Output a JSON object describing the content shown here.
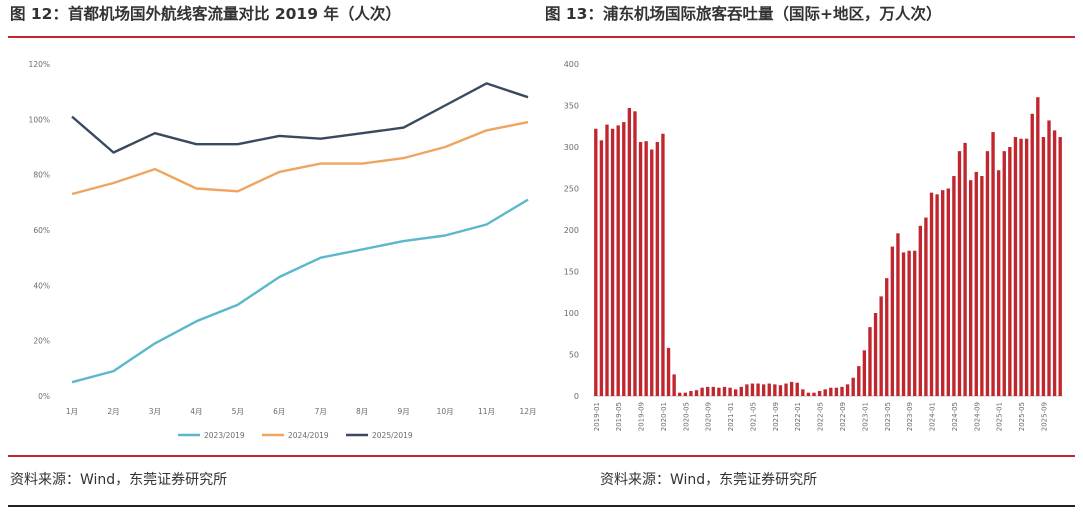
{
  "figure_left": {
    "title": "图 12：首都机场国外航线客流量对比 2019 年（人次）",
    "source": "资料来源：Wind，东莞证券研究所"
  },
  "figure_right": {
    "title": "图 13：浦东机场国际旅客吞吐量（国际+地区，万人次）",
    "source": "资料来源：Wind，东莞证券研究所"
  },
  "colors": {
    "accent_rule": "#c0262d",
    "bar": "#c0262d"
  },
  "chart_data": [
    {
      "type": "line",
      "categories": [
        "1月",
        "2月",
        "3月",
        "4月",
        "5月",
        "6月",
        "7月",
        "8月",
        "9月",
        "10月",
        "11月",
        "12月"
      ],
      "ylim": [
        0,
        120
      ],
      "yticks": [
        "0%",
        "20%",
        "40%",
        "60%",
        "80%",
        "100%",
        "120%"
      ],
      "series": [
        {
          "name": "2023/2019",
          "color": "#5bb8cc",
          "values": [
            5,
            9,
            19,
            27,
            33,
            43,
            50,
            53,
            56,
            58,
            62,
            71
          ]
        },
        {
          "name": "2024/2019",
          "color": "#f0a55f",
          "values": [
            73,
            77,
            82,
            75,
            74,
            81,
            84,
            84,
            86,
            90,
            96,
            99
          ]
        },
        {
          "name": "2025/2019",
          "color": "#3a4a5e",
          "values": [
            101,
            88,
            95,
            91,
            91,
            94,
            93,
            95,
            97,
            105,
            113,
            108
          ]
        }
      ],
      "legend": "bottom",
      "grid": false
    },
    {
      "type": "bar",
      "ylim": [
        0,
        400
      ],
      "yticks": [
        "0",
        "50",
        "100",
        "150",
        "200",
        "250",
        "300",
        "350",
        "400"
      ],
      "xtick_labels": [
        "2019-01",
        "2019-05",
        "2019-09",
        "2020-01",
        "2020-05",
        "2020-09",
        "2021-01",
        "2021-05",
        "2021-09",
        "2022-01",
        "2022-05",
        "2022-09",
        "2023-01",
        "2023-05",
        "2023-09",
        "2024-01",
        "2024-05",
        "2024-09",
        "2025-01",
        "2025-05",
        "2025-09"
      ],
      "values": [
        322,
        308,
        327,
        322,
        326,
        330,
        347,
        343,
        306,
        307,
        297,
        306,
        316,
        58,
        26,
        4,
        4,
        6,
        7,
        10,
        11,
        11,
        10,
        11,
        10,
        8,
        11,
        14,
        15,
        15,
        14,
        15,
        14,
        13,
        15,
        17,
        16,
        8,
        4,
        4,
        6,
        8,
        10,
        10,
        11,
        14,
        22,
        36,
        55,
        83,
        100,
        120,
        142,
        180,
        196,
        173,
        175,
        175,
        205,
        215,
        245,
        243,
        248,
        250,
        265,
        295,
        305,
        260,
        270,
        265,
        295,
        318,
        272,
        295,
        300,
        312,
        310,
        310,
        340,
        360,
        312,
        332,
        320,
        312
      ],
      "grid": false
    }
  ]
}
